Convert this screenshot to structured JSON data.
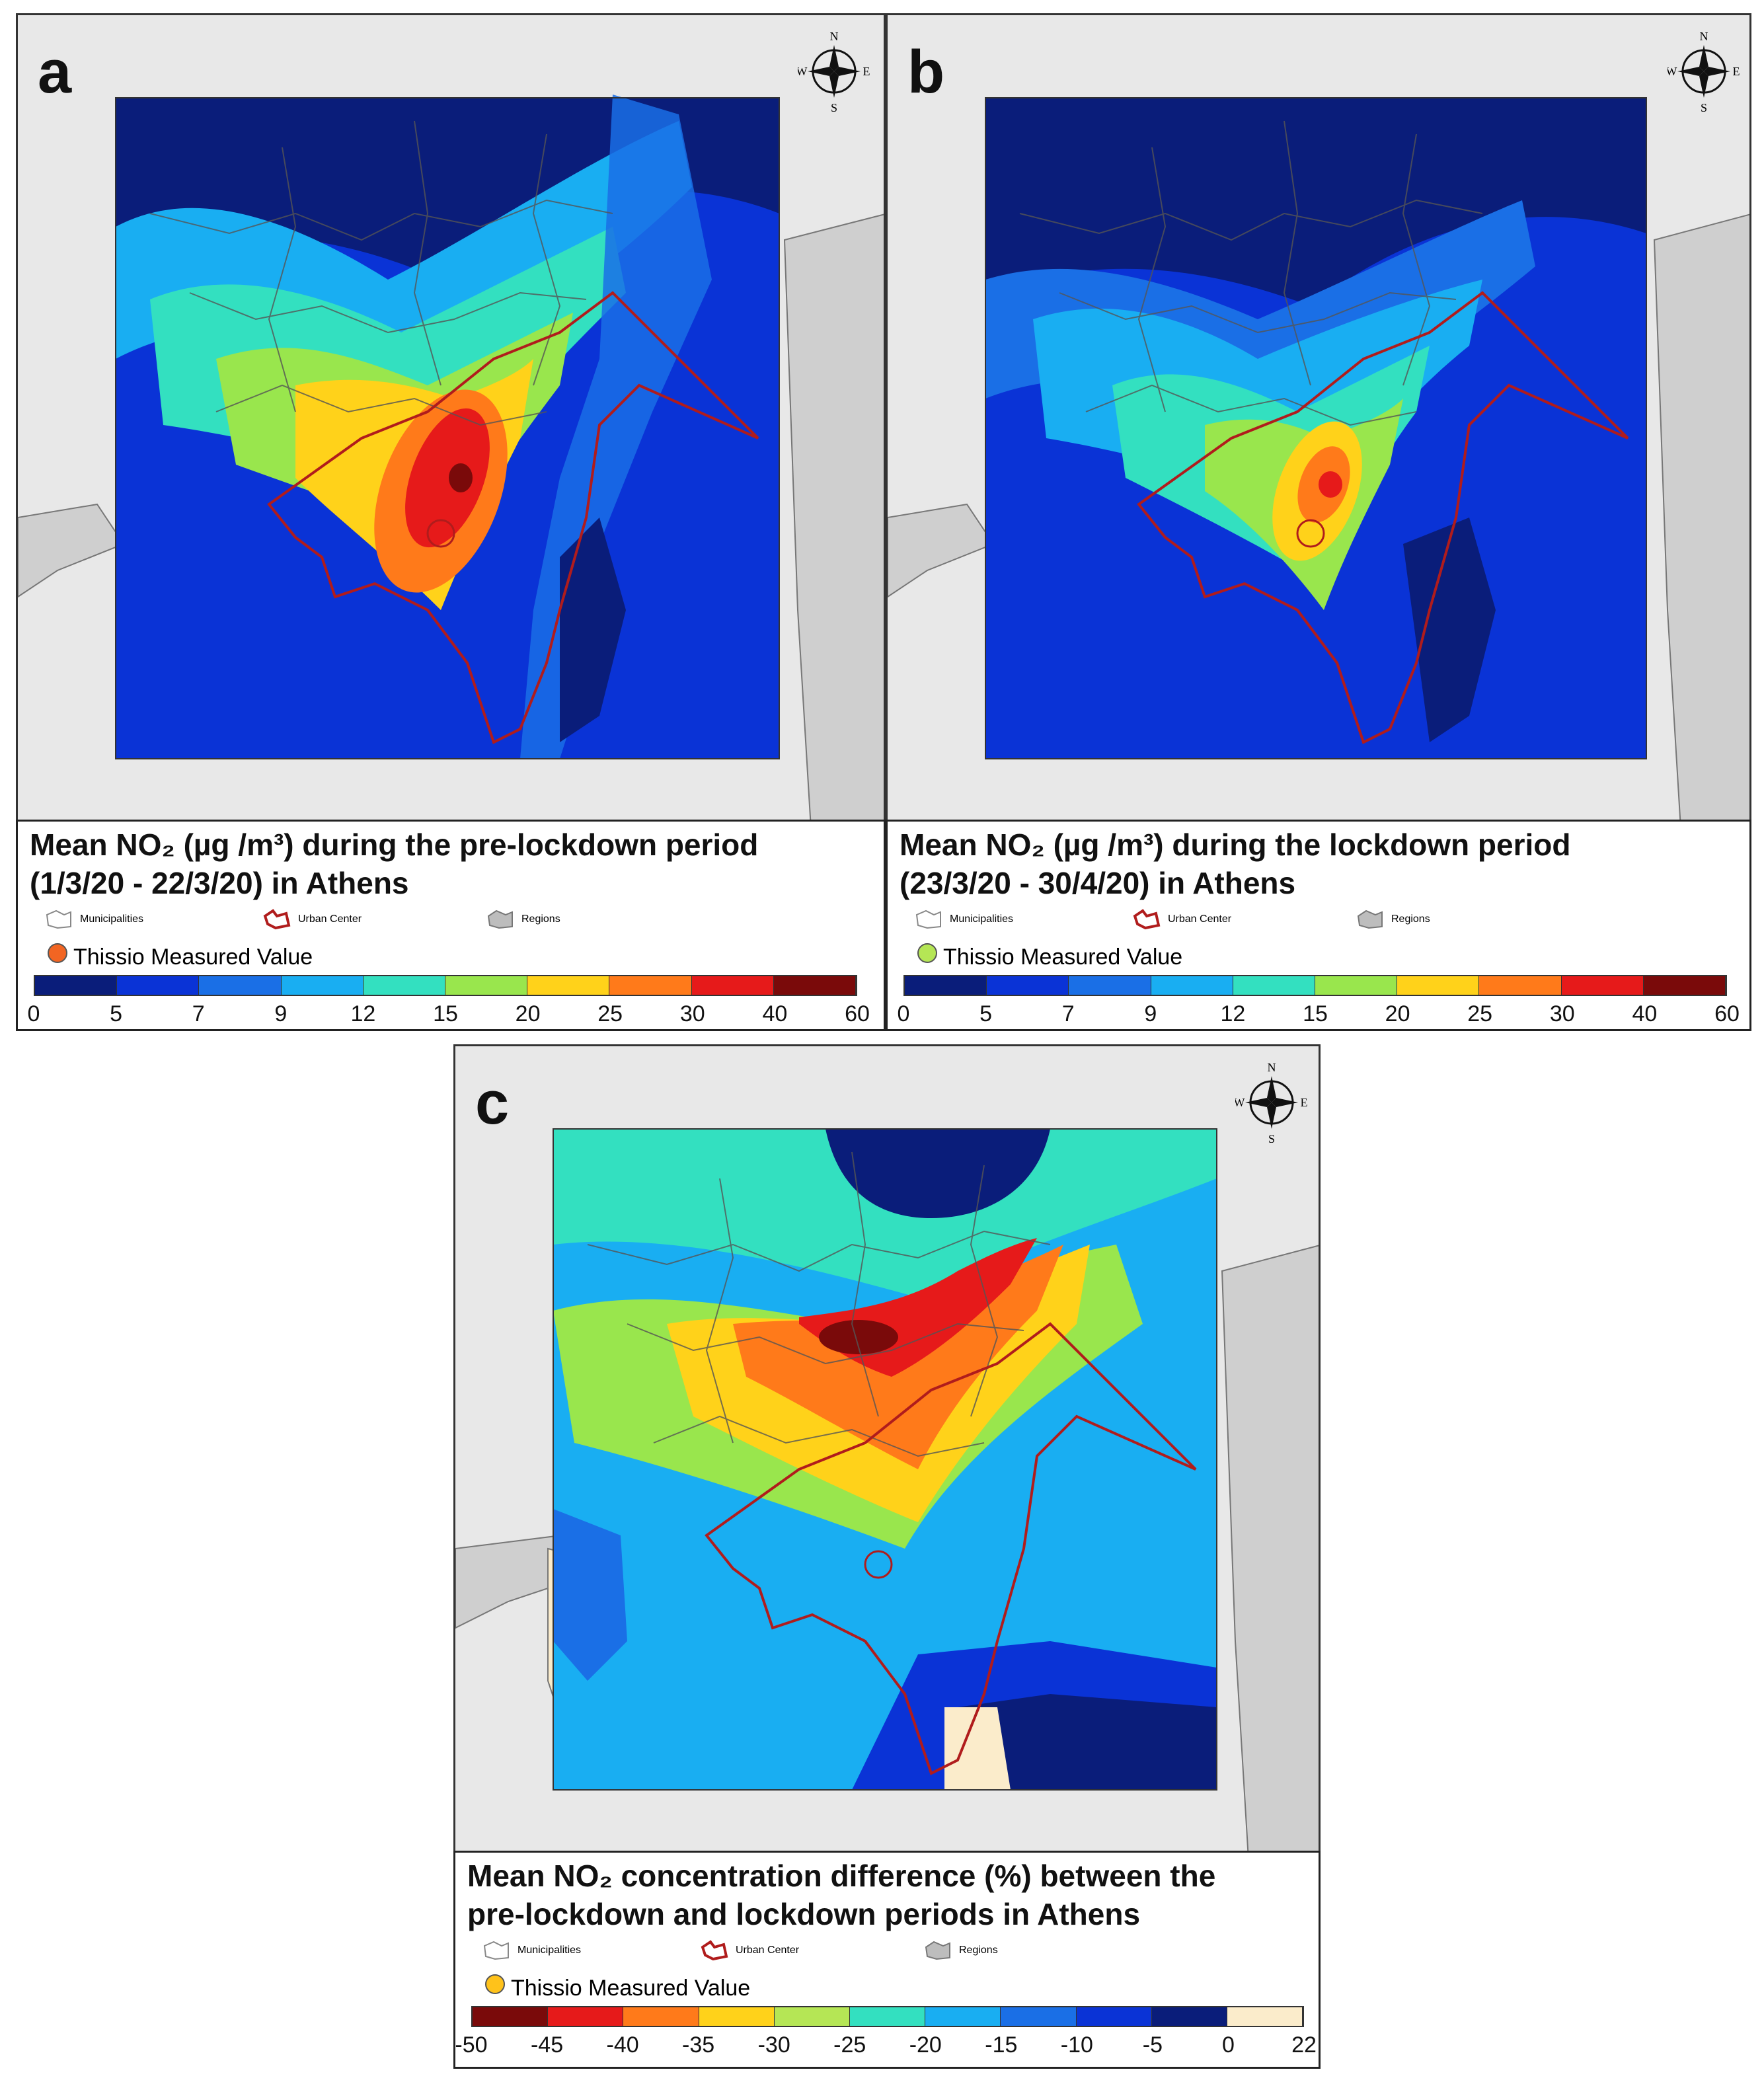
{
  "panels": [
    {
      "letter": "a",
      "title_line1": "Mean NO₂ (µg /m³) during the pre-lockdown period",
      "title_line2": "(1/3/20 - 22/3/20) in Athens",
      "legend": {
        "municipalities": "Municipalities",
        "urban_center": "Urban Center",
        "regions": "Regions",
        "measured": "Thissio Measured Value"
      },
      "measured_color": "#f26522",
      "ramp_colors": [
        "#0a1d7a",
        "#0a33d6",
        "#1a6fe6",
        "#19aef2",
        "#33e0c0",
        "#99e64d",
        "#ffd21a",
        "#ff7a1a",
        "#e61a1a",
        "#7a0a0a"
      ],
      "ticks": [
        "0",
        "5",
        "7",
        "9",
        "12",
        "15",
        "20",
        "25",
        "30",
        "40",
        "60"
      ]
    },
    {
      "letter": "b",
      "title_line1": "Mean NO₂ (µg /m³) during the lockdown period",
      "title_line2": "(23/3/20 - 30/4/20) in Athens",
      "legend": {
        "municipalities": "Municipalities",
        "urban_center": "Urban Center",
        "regions": "Regions",
        "measured": "Thissio Measured Value"
      },
      "measured_color": "#b5e655",
      "ramp_colors": [
        "#0a1d7a",
        "#0a33d6",
        "#1a6fe6",
        "#19aef2",
        "#33e0c0",
        "#99e64d",
        "#ffd21a",
        "#ff7a1a",
        "#e61a1a",
        "#7a0a0a"
      ],
      "ticks": [
        "0",
        "5",
        "7",
        "9",
        "12",
        "15",
        "20",
        "25",
        "30",
        "40",
        "60"
      ]
    },
    {
      "letter": "c",
      "title_line1": "Mean NO₂ concentration difference (%) between the",
      "title_line2": "pre-lockdown and lockdown periods in Athens",
      "legend": {
        "municipalities": "Municipalities",
        "urban_center": "Urban Center",
        "regions": "Regions",
        "measured": "Thissio Measured Value"
      },
      "measured_color": "#ffc21a",
      "ramp_colors": [
        "#7a0a0a",
        "#e61a1a",
        "#ff7a1a",
        "#ffd21a",
        "#b5e655",
        "#33e0c0",
        "#19aef2",
        "#1a6fe6",
        "#0a33d6",
        "#0a1d7a",
        "#fbeccb"
      ],
      "ticks": [
        "-50",
        "-45",
        "-40",
        "-35",
        "-30",
        "-25",
        "-20",
        "-15",
        "-10",
        "-5",
        "0",
        "22"
      ]
    }
  ],
  "compass": {
    "n": "N",
    "s": "S",
    "e": "E",
    "w": "W"
  }
}
